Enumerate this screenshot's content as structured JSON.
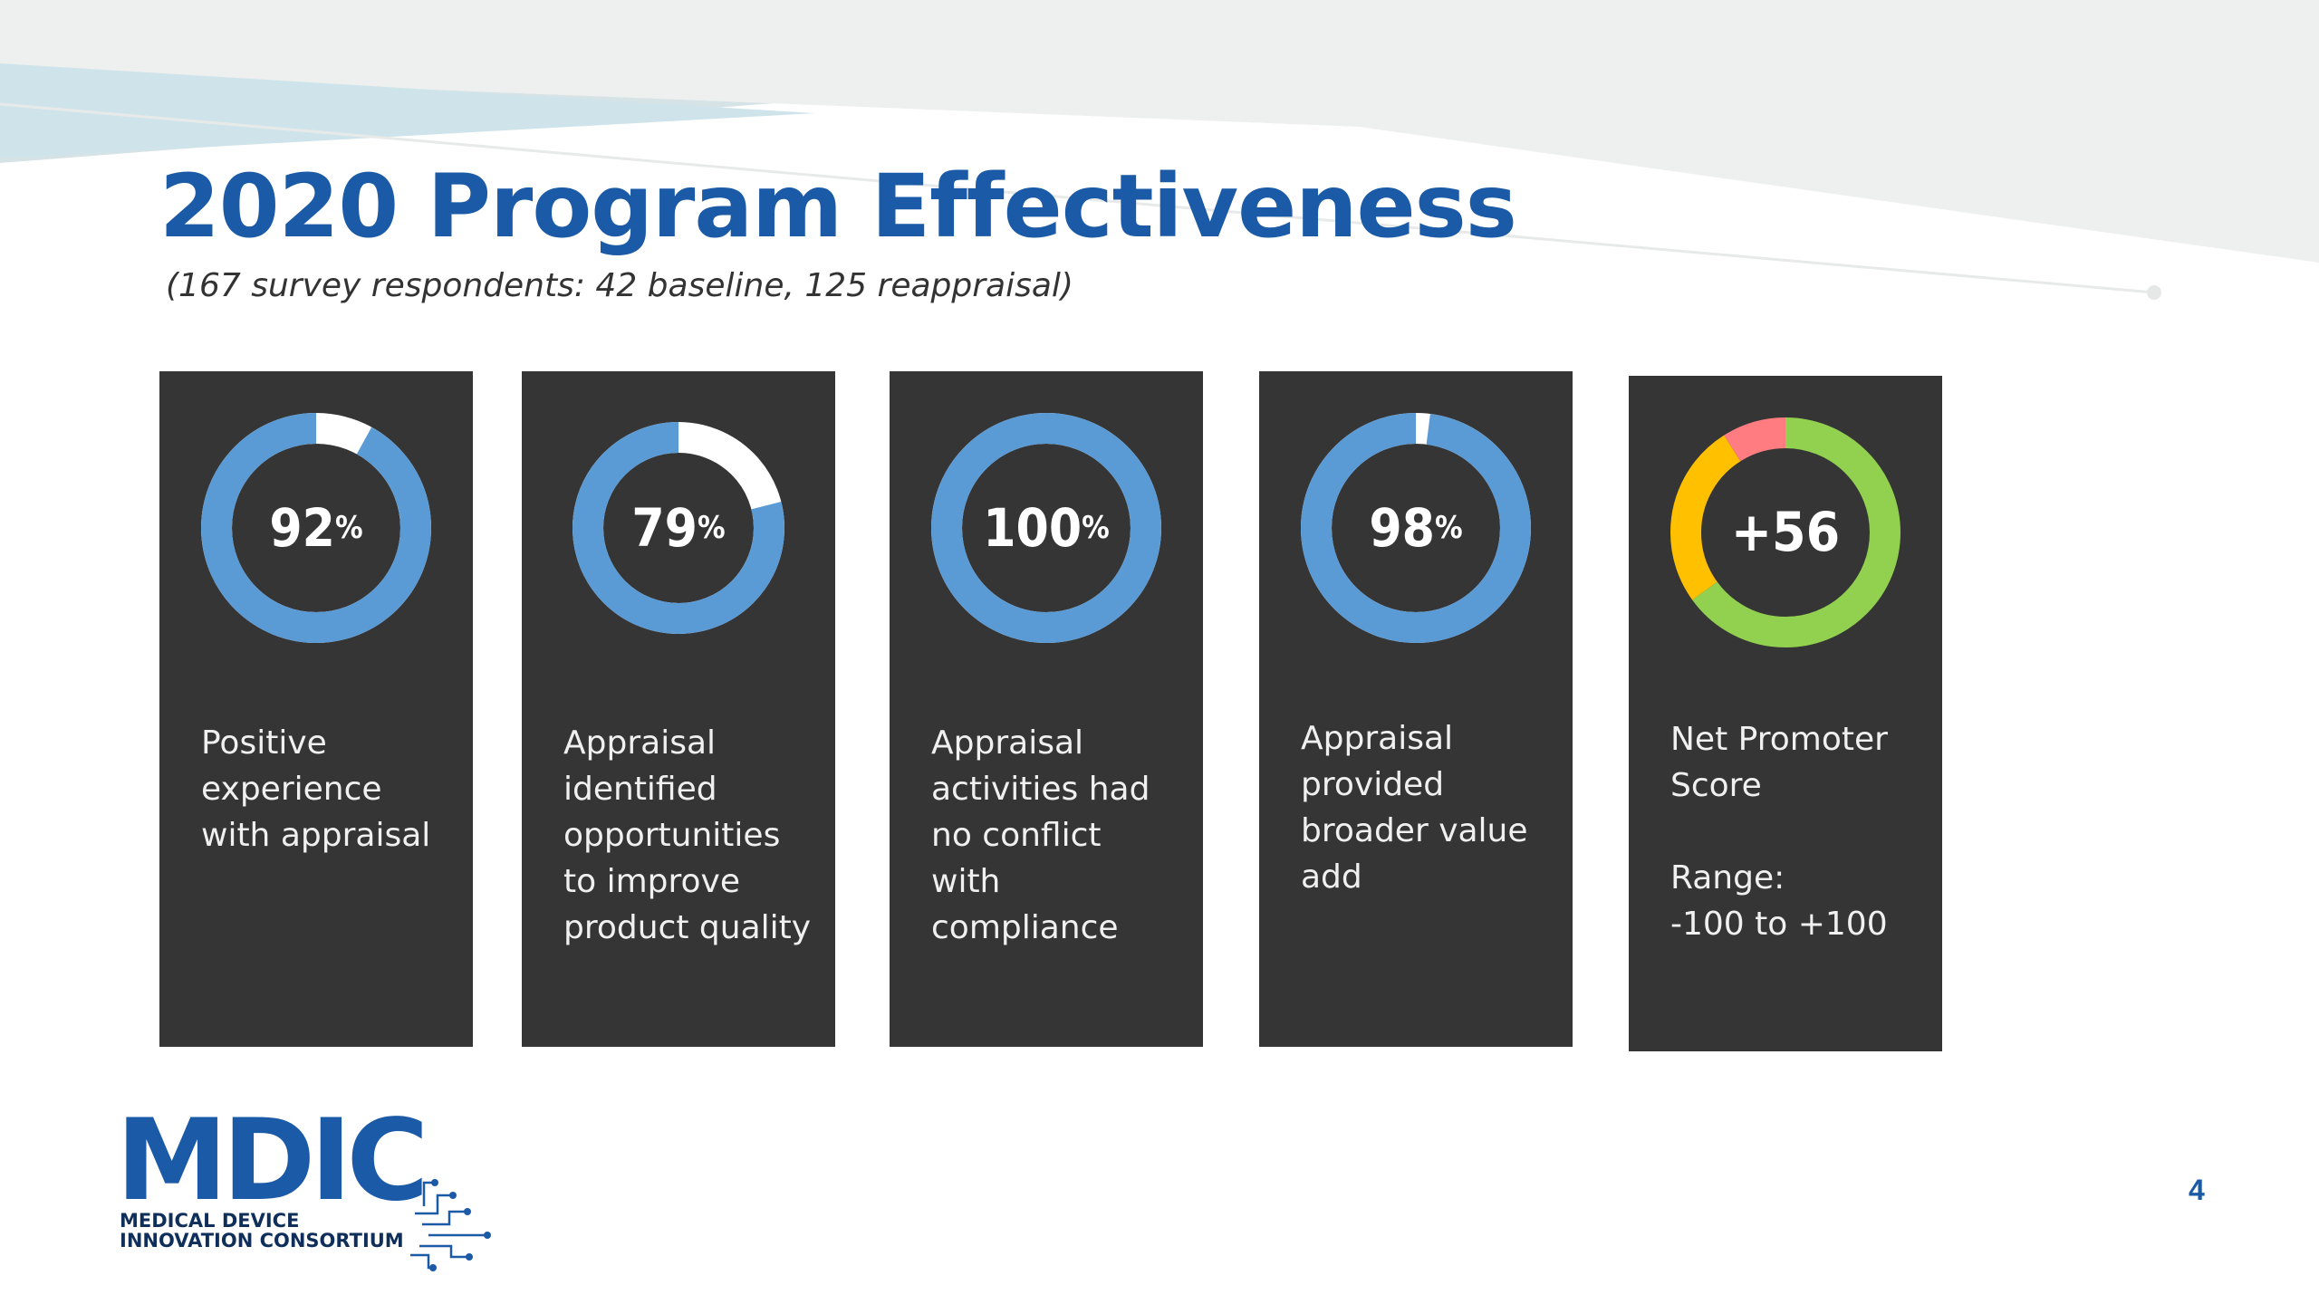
{
  "slide": {
    "title": "2020 Program Effectiveness",
    "subtitle": "(167 survey respondents: 42 baseline, 125 reappraisal)",
    "page_number": "4",
    "colors": {
      "title": "#1b5aa6",
      "card_bg": "#353535",
      "ring_fill": "#5b9bd5",
      "ring_track": "#ffffff",
      "nps_promoters": "#92d050",
      "nps_passives": "#ffc000",
      "nps_detractors": "#ff7c80"
    }
  },
  "cards": [
    {
      "value": "92",
      "unit": "%",
      "percent": 92,
      "lines": [
        "Positive",
        "experience",
        "with appraisal"
      ]
    },
    {
      "value": "79",
      "unit": "%",
      "percent": 79,
      "lines": [
        "Appraisal",
        "identified",
        "opportunities",
        "to improve",
        "product quality"
      ]
    },
    {
      "value": "100",
      "unit": "%",
      "percent": 100,
      "lines": [
        "Appraisal",
        "activities had",
        "no conflict",
        "with",
        "compliance"
      ]
    },
    {
      "value": "98",
      "unit": "%",
      "percent": 98,
      "lines": [
        "Appraisal",
        "provided",
        "broader value",
        "add"
      ]
    },
    {
      "value": "+56",
      "unit": "",
      "nps_segments": {
        "promoters": 0.65,
        "passives": 0.26,
        "detractors": 0.09
      },
      "lines": [
        "Net Promoter",
        "Score",
        "",
        "Range:",
        "-100 to +100"
      ]
    }
  ],
  "logo": {
    "name": "MDIC",
    "line1": "MEDICAL DEVICE",
    "line2": "INNOVATION CONSORTIUM"
  }
}
